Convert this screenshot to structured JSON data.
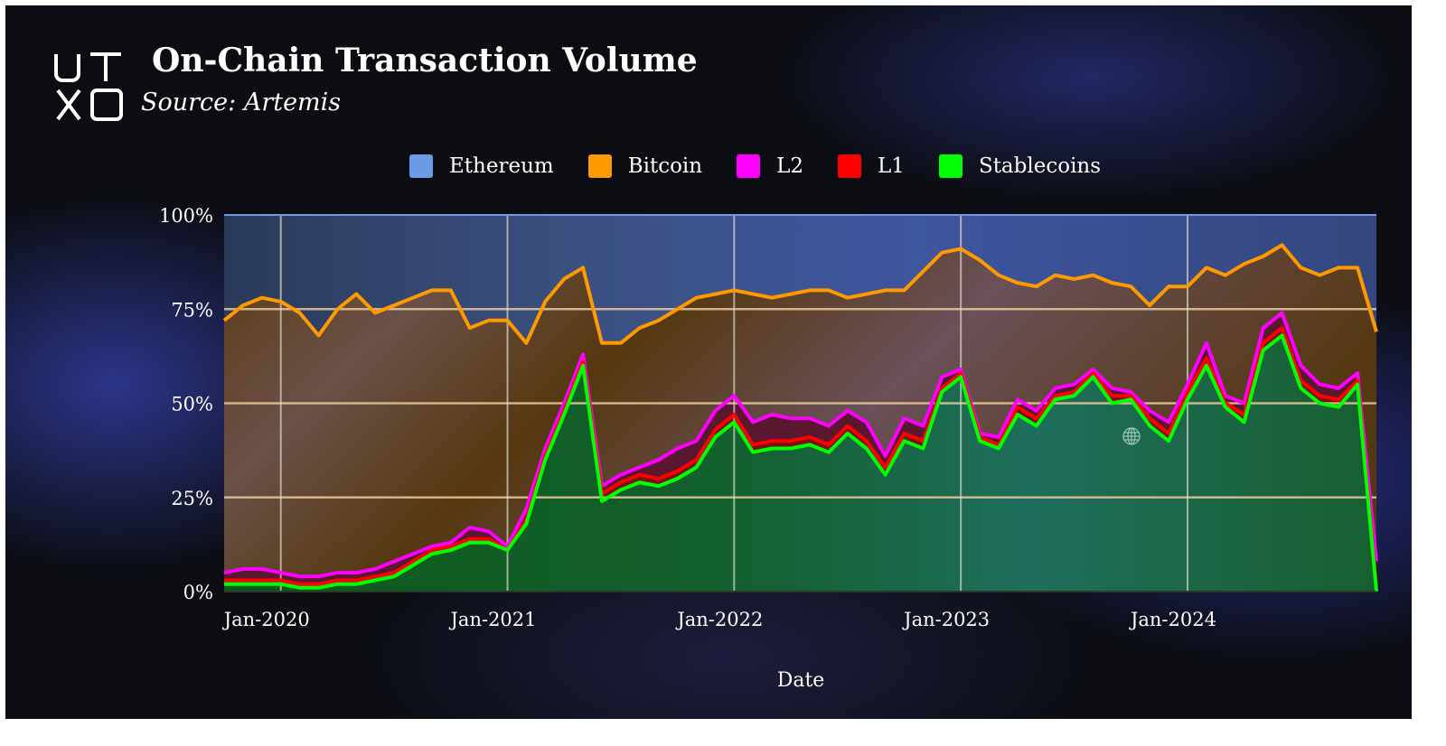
{
  "header": {
    "logo_text": "UTXO",
    "title": "On-Chain Transaction Volume",
    "source": "Source: Artemis"
  },
  "colors": {
    "ethereum": "#6b9be6",
    "bitcoin": "#ff9900",
    "l2": "#ff00ff",
    "l1": "#ff0000",
    "stablecoins": "#00ff00"
  },
  "chart_data": {
    "type": "area",
    "stacked": true,
    "normalized": true,
    "title": "On-Chain Transaction Volume",
    "subtitle": "Source: Artemis",
    "xlabel": "Date",
    "ylabel": "",
    "ylim": [
      0,
      100
    ],
    "yticks": [
      "0%",
      "25%",
      "50%",
      "75%",
      "100%"
    ],
    "xticks": [
      "Jan-2020",
      "Jan-2021",
      "Jan-2022",
      "Jan-2023",
      "Jan-2024"
    ],
    "xtick_dates": [
      "2020-01",
      "2021-01",
      "2022-01",
      "2023-01",
      "2024-01"
    ],
    "grid": true,
    "legend_position": "top-center",
    "x": [
      "2019-10",
      "2019-11",
      "2019-12",
      "2020-01",
      "2020-02",
      "2020-03",
      "2020-04",
      "2020-05",
      "2020-06",
      "2020-07",
      "2020-08",
      "2020-09",
      "2020-10",
      "2020-11",
      "2020-12",
      "2021-01",
      "2021-02",
      "2021-03",
      "2021-04",
      "2021-05",
      "2021-06",
      "2021-07",
      "2021-08",
      "2021-09",
      "2021-10",
      "2021-11",
      "2021-12",
      "2022-01",
      "2022-02",
      "2022-03",
      "2022-04",
      "2022-05",
      "2022-06",
      "2022-07",
      "2022-08",
      "2022-09",
      "2022-10",
      "2022-11",
      "2022-12",
      "2023-01",
      "2023-02",
      "2023-03",
      "2023-04",
      "2023-05",
      "2023-06",
      "2023-07",
      "2023-08",
      "2023-09",
      "2023-10",
      "2023-11",
      "2023-12",
      "2024-01",
      "2024-02",
      "2024-03",
      "2024-04",
      "2024-05",
      "2024-06",
      "2024-07",
      "2024-08",
      "2024-09",
      "2024-10",
      "2024-11"
    ],
    "series": [
      {
        "name": "Stablecoins",
        "key": "stablecoins",
        "values": [
          2,
          2,
          2,
          2,
          1,
          1,
          2,
          2,
          3,
          4,
          7,
          10,
          11,
          13,
          13,
          11,
          18,
          35,
          47,
          60,
          24,
          27,
          29,
          28,
          30,
          33,
          41,
          45,
          37,
          38,
          38,
          39,
          37,
          42,
          38,
          31,
          40,
          38,
          53,
          57,
          40,
          38,
          47,
          44,
          51,
          52,
          57,
          50,
          51,
          44,
          40,
          51,
          60,
          49,
          45,
          64,
          68,
          54,
          50,
          49,
          55,
          0
        ]
      },
      {
        "name": "L1",
        "key": "l1",
        "values": [
          1,
          1,
          1,
          1,
          1,
          1,
          1,
          1,
          1,
          1,
          1,
          1,
          1,
          1,
          1,
          0,
          1,
          1,
          1,
          1,
          2,
          2,
          2,
          2,
          2,
          2,
          2,
          2,
          2,
          2,
          2,
          2,
          2,
          2,
          2,
          2,
          2,
          2,
          1,
          1,
          1,
          1,
          2,
          2,
          1,
          1,
          1,
          2,
          1,
          2,
          2,
          2,
          2,
          1,
          2,
          2,
          2,
          2,
          2,
          2,
          1,
          1
        ]
      },
      {
        "name": "L2",
        "key": "l2",
        "values": [
          2,
          3,
          3,
          2,
          2,
          2,
          2,
          2,
          2,
          3,
          2,
          1,
          1,
          3,
          2,
          1,
          3,
          2,
          2,
          2,
          2,
          2,
          2,
          5,
          6,
          5,
          5,
          5,
          6,
          7,
          6,
          5,
          5,
          4,
          5,
          3,
          4,
          4,
          3,
          1,
          1,
          2,
          2,
          2,
          2,
          2,
          1,
          2,
          1,
          2,
          3,
          2,
          4,
          2,
          3,
          4,
          4,
          4,
          3,
          3,
          2,
          7
        ]
      },
      {
        "name": "Bitcoin",
        "key": "bitcoin",
        "values": [
          67,
          70,
          72,
          72,
          70,
          64,
          70,
          74,
          68,
          68,
          68,
          68,
          67,
          53,
          56,
          60,
          44,
          39,
          33,
          23,
          38,
          35,
          37,
          37,
          37,
          38,
          31,
          28,
          34,
          31,
          33,
          34,
          36,
          30,
          34,
          44,
          34,
          41,
          33,
          32,
          46,
          43,
          31,
          33,
          30,
          28,
          25,
          28,
          28,
          28,
          36,
          26,
          20,
          32,
          37,
          19,
          18,
          26,
          29,
          32,
          28,
          61
        ]
      },
      {
        "name": "Ethereum",
        "key": "ethereum",
        "values": [
          28,
          24,
          22,
          23,
          26,
          32,
          25,
          21,
          26,
          24,
          22,
          20,
          20,
          30,
          28,
          28,
          34,
          23,
          17,
          14,
          34,
          34,
          30,
          28,
          25,
          22,
          21,
          20,
          21,
          22,
          21,
          20,
          20,
          22,
          21,
          20,
          20,
          15,
          10,
          9,
          12,
          16,
          18,
          19,
          16,
          17,
          16,
          18,
          19,
          24,
          19,
          19,
          14,
          16,
          13,
          11,
          8,
          14,
          16,
          14,
          14,
          31
        ]
      }
    ],
    "legend": [
      "Ethereum",
      "Bitcoin",
      "L2",
      "L1",
      "Stablecoins"
    ]
  }
}
